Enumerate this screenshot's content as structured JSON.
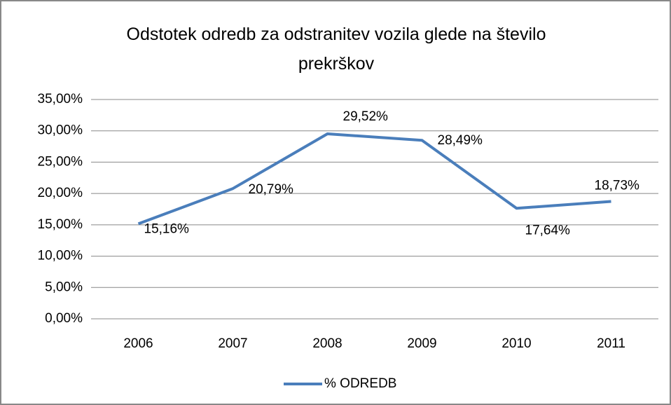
{
  "chart_data": {
    "type": "line",
    "title": "Odstotek odredb za odstranitev vozila glede na število prekrškov",
    "categories": [
      "2006",
      "2007",
      "2008",
      "2009",
      "2010",
      "2011"
    ],
    "series": [
      {
        "name": "% ODREDB",
        "color": "#4a7ebb",
        "values": [
          15.16,
          20.79,
          29.52,
          28.49,
          17.64,
          18.73
        ],
        "value_labels": [
          "15,16%",
          "20,79%",
          "29,52%",
          "28,49%",
          "17,64%",
          "18,73%"
        ]
      }
    ],
    "ylim": [
      0,
      35
    ],
    "yticks": [
      {
        "value": 0,
        "label": "0,00%"
      },
      {
        "value": 5,
        "label": "5,00%"
      },
      {
        "value": 10,
        "label": "10,00%"
      },
      {
        "value": 15,
        "label": "15,00%"
      },
      {
        "value": 20,
        "label": "20,00%"
      },
      {
        "value": 25,
        "label": "25,00%"
      },
      {
        "value": 30,
        "label": "30,00%"
      },
      {
        "value": 35,
        "label": "35,00%"
      }
    ],
    "grid": true,
    "legend": "bottom"
  }
}
